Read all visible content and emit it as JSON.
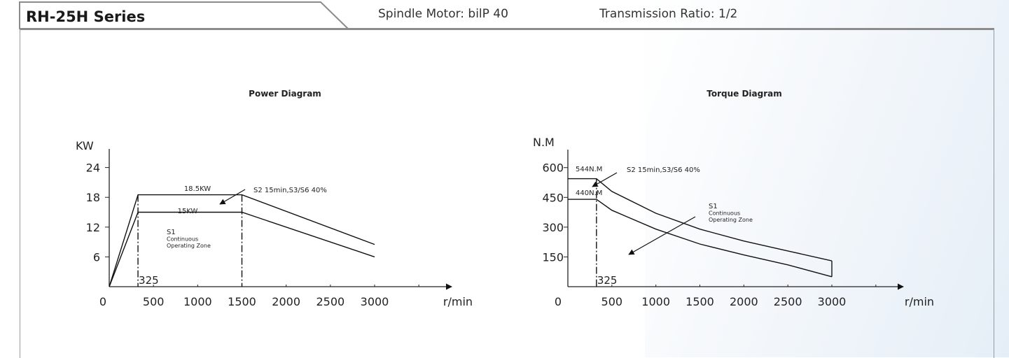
{
  "header": {
    "series_title": "RH-25H Series",
    "spindle_motor": "Spindle Motor: bilP 40",
    "transmission_ratio": "Transmission Ratio: 1/2"
  },
  "chart_data": [
    {
      "type": "line",
      "title": "Power Diagram",
      "ylabel": "KW",
      "xlabel": "r/min",
      "origin_label": "0",
      "x_ticks": [
        "500",
        "1000",
        "1500",
        "2000",
        "2500",
        "3000"
      ],
      "y_ticks": [
        "6",
        "12",
        "18",
        "24"
      ],
      "xlim": [
        0,
        3500
      ],
      "ylim": [
        0,
        27
      ],
      "series": [
        {
          "x": [
            0,
            325,
            1500,
            3000
          ],
          "values": [
            0,
            18.5,
            18.5,
            8.5
          ]
        },
        {
          "x": [
            0,
            325,
            1500,
            3000
          ],
          "values": [
            0,
            15,
            15,
            6
          ]
        }
      ],
      "annotations": {
        "upper_label": "18.5KW",
        "lower_label": "15KW",
        "duty_label": "S2 15min,S3/S6 40%",
        "zone_label": [
          "S1",
          "Continuous",
          "Operating Zone"
        ],
        "base_speed_label": "325"
      }
    },
    {
      "type": "line",
      "title": "Torque Diagram",
      "ylabel": "N.M",
      "xlabel": "r/min",
      "origin_label": "0",
      "x_ticks": [
        "500",
        "1000",
        "1500",
        "2000",
        "2500",
        "3000"
      ],
      "y_ticks": [
        "150",
        "300",
        "450",
        "600"
      ],
      "xlim": [
        0,
        3500
      ],
      "ylim": [
        0,
        720
      ],
      "series": [
        {
          "x": [
            0,
            325,
            500,
            1000,
            1500,
            2000,
            2500,
            3000
          ],
          "values": [
            544,
            544,
            480,
            370,
            290,
            230,
            180,
            130
          ]
        },
        {
          "x": [
            0,
            325,
            500,
            1000,
            1500,
            2000,
            2500,
            3000
          ],
          "values": [
            440,
            440,
            385,
            290,
            215,
            160,
            110,
            50
          ]
        }
      ],
      "annotations": {
        "upper_label": "544N.M",
        "lower_label": "440N.M",
        "duty_label": "S2 15min,S3/S6 40%",
        "zone_label": [
          "S1",
          "Continuous",
          "Operating Zone"
        ],
        "base_speed_label": "325"
      }
    }
  ]
}
